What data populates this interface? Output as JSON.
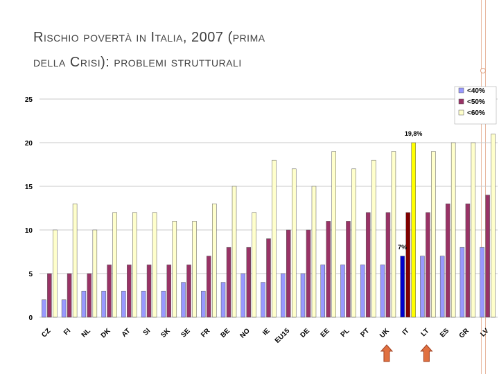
{
  "slide": {
    "title_line1": "Rischio povertà in Italia, 2007 (prima",
    "title_line2": "della Crisi): problemi strutturali"
  },
  "chart_data": {
    "type": "bar",
    "title": "",
    "xlabel": "",
    "ylabel": "",
    "ylim": [
      0,
      25
    ],
    "yticks": [
      0,
      5,
      10,
      15,
      20,
      25
    ],
    "categories": [
      "CZ",
      "FI",
      "NL",
      "DK",
      "AT",
      "SI",
      "SK",
      "SE",
      "FR",
      "BE",
      "NO",
      "IE",
      "EU15",
      "DE",
      "EE",
      "PL",
      "PT",
      "UK",
      "IT",
      "LT",
      "ES",
      "GR",
      "LV"
    ],
    "series": [
      {
        "name": "<40%",
        "color": "#9999ff",
        "values": [
          2,
          2,
          3,
          3,
          3,
          3,
          3,
          4,
          3,
          4,
          5,
          4,
          5,
          5,
          6,
          6,
          6,
          6,
          7,
          7,
          7,
          8,
          8
        ]
      },
      {
        "name": "<50%",
        "color": "#993366",
        "values": [
          5,
          5,
          5,
          6,
          6,
          6,
          6,
          6,
          7,
          8,
          8,
          9,
          10,
          10,
          11,
          11,
          12,
          12,
          12,
          12,
          13,
          13,
          14
        ]
      },
      {
        "name": "<60%",
        "color": "#ffffcc",
        "values": [
          10,
          13,
          10,
          12,
          12,
          12,
          11,
          11,
          13,
          15,
          12,
          18,
          17,
          15,
          19,
          17,
          18,
          19,
          20,
          19,
          20,
          20,
          21
        ]
      }
    ],
    "highlight": {
      "category": "IT",
      "colors": [
        "#0000cc",
        "#800000",
        "#ffff00"
      ]
    },
    "annotations": [
      {
        "text": "19,8%",
        "category": "IT",
        "series": "<60%"
      },
      {
        "text": "7%",
        "category": "IT",
        "series": "<40%"
      }
    ],
    "arrows": [
      "UK",
      "LT"
    ],
    "arrow_color": "#e07040",
    "legend_position": "top-right"
  }
}
